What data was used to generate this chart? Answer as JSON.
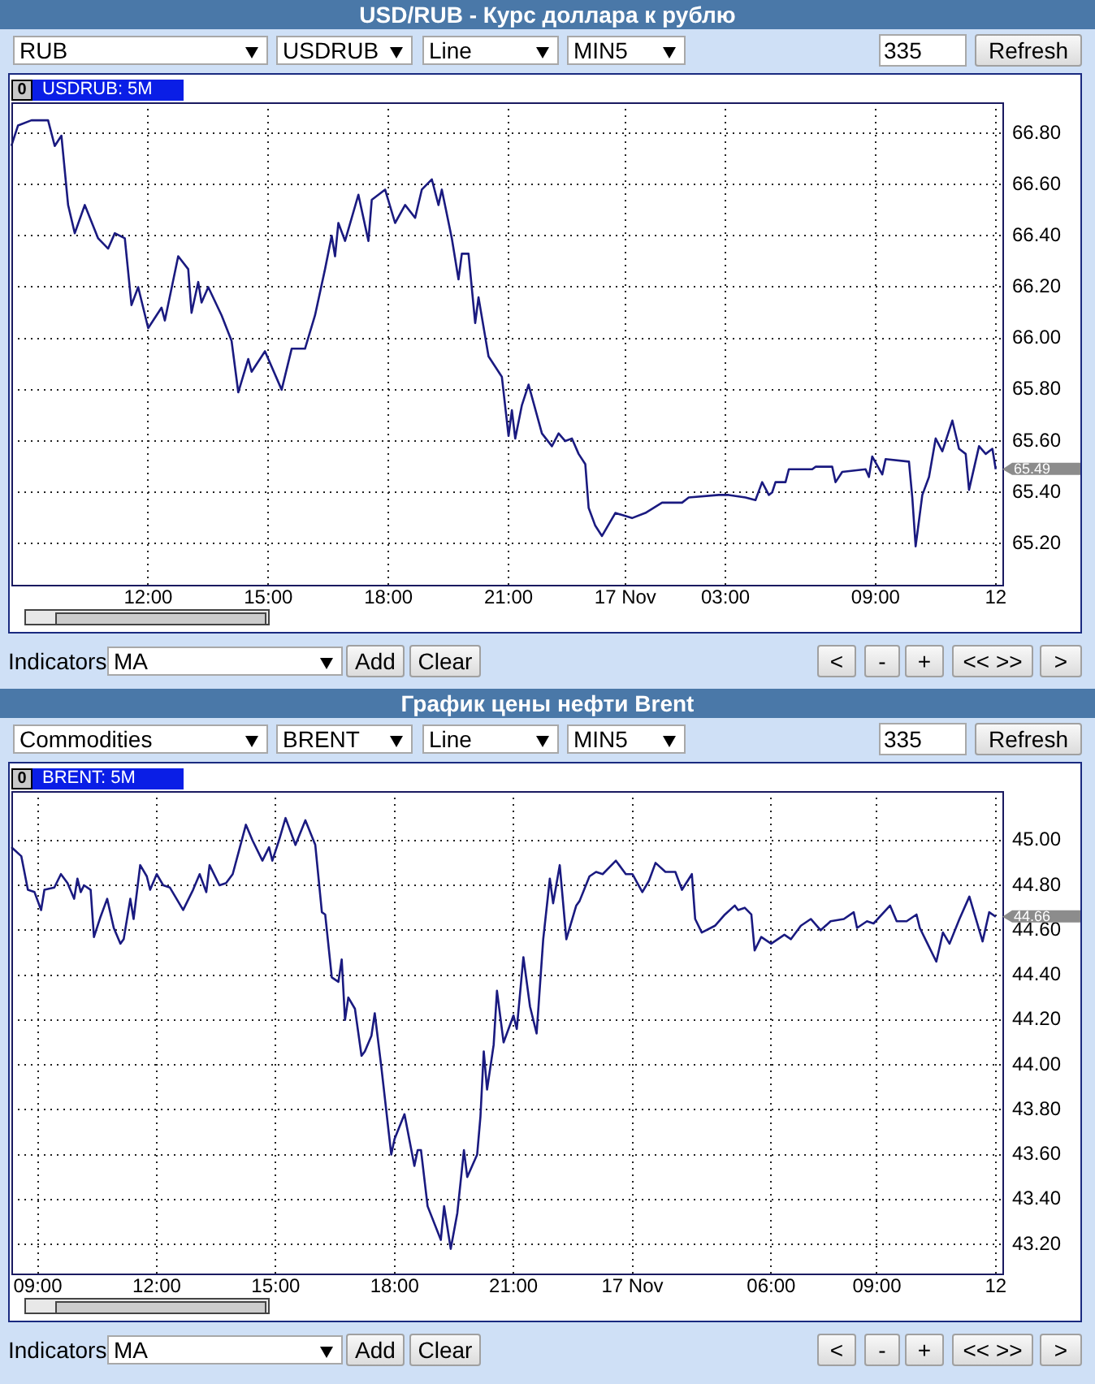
{
  "chart_data": [
    {
      "type": "line",
      "title": "USD/RUB - Курс доллара к рублю",
      "color": "#1a1a80",
      "marker": "none",
      "line_style": "solid",
      "grid": true,
      "categories": [
        null,
        null,
        null,
        null,
        null,
        null,
        null,
        null,
        null,
        null,
        null,
        null,
        null,
        null,
        null,
        null,
        null,
        null,
        null,
        null,
        null,
        null,
        null,
        null,
        null,
        null,
        null,
        null,
        null,
        null,
        null,
        null,
        null,
        null,
        null,
        null,
        null,
        null,
        null,
        null,
        null,
        "12:00",
        null,
        null,
        null,
        null,
        null,
        null,
        null,
        null,
        null,
        null,
        null,
        null,
        null,
        null,
        null,
        null,
        null,
        null,
        null,
        null,
        null,
        null,
        null,
        null,
        null,
        null,
        null,
        null,
        null,
        null,
        null,
        null,
        null,
        null,
        null,
        "15:00",
        null,
        null,
        null,
        null,
        null,
        null,
        null,
        null,
        null,
        null,
        null,
        null,
        null,
        null,
        null,
        null,
        null,
        null,
        null,
        null,
        null,
        null,
        null,
        null,
        null,
        null,
        null,
        null,
        null,
        null,
        null,
        null,
        null,
        null,
        null,
        "18:00",
        null,
        null,
        null,
        null,
        null,
        null,
        null,
        null,
        null,
        null,
        null,
        null,
        null,
        null,
        null,
        null,
        null,
        null,
        null,
        null,
        null,
        null,
        null,
        null,
        null,
        null,
        null,
        null,
        null,
        null,
        null,
        null,
        null,
        null,
        null,
        "21:00",
        null,
        null,
        null,
        null,
        null,
        null,
        null,
        null,
        null,
        null,
        null,
        null,
        null,
        null,
        null,
        null,
        null,
        null,
        null,
        null,
        null,
        null,
        null,
        null,
        null,
        null,
        null,
        null,
        null,
        null,
        null,
        null,
        null,
        null,
        "17 Nov",
        null,
        null,
        null,
        null,
        null,
        null,
        null,
        null,
        null,
        null,
        null,
        null,
        null,
        null,
        null,
        null,
        null,
        null,
        null,
        null,
        null,
        null,
        null,
        null,
        null,
        null,
        null,
        null,
        null,
        "03:00",
        null,
        null,
        null,
        null,
        null,
        null,
        null,
        null,
        null,
        null,
        null,
        null,
        null,
        null,
        null,
        null,
        null,
        null,
        null,
        null,
        null,
        null,
        null,
        null,
        null,
        null,
        null,
        null,
        null,
        null,
        null,
        null,
        null,
        null,
        null,
        null,
        null,
        null,
        null,
        null,
        null,
        null,
        null,
        null,
        "09:00",
        null,
        null,
        null,
        null,
        null,
        null,
        null,
        null,
        null,
        null,
        null,
        null,
        null,
        null,
        null,
        null,
        null,
        null,
        null,
        null,
        null,
        null,
        null,
        null,
        null,
        null,
        null,
        null,
        null,
        null,
        null,
        null,
        null,
        null,
        null,
        "12",
        null,
        null
      ],
      "values": [
        66.75,
        null,
        66.83,
        null,
        null,
        null,
        66.85,
        null,
        null,
        null,
        null,
        66.85,
        null,
        66.75,
        null,
        66.79,
        null,
        66.52,
        null,
        66.41,
        null,
        null,
        66.52,
        null,
        null,
        null,
        66.39,
        null,
        null,
        66.35,
        null,
        66.41,
        null,
        null,
        66.39,
        null,
        66.13,
        null,
        66.2,
        null,
        null,
        66.04,
        null,
        null,
        null,
        66.12,
        66.07,
        null,
        null,
        null,
        66.32,
        null,
        null,
        66.27,
        66.1,
        null,
        66.22,
        66.14,
        null,
        66.2,
        null,
        null,
        null,
        66.09,
        null,
        null,
        65.99,
        null,
        65.79,
        null,
        null,
        65.92,
        65.87,
        null,
        null,
        null,
        65.95,
        null,
        null,
        null,
        null,
        65.8,
        null,
        null,
        65.96,
        null,
        null,
        null,
        65.96,
        null,
        null,
        66.09,
        null,
        null,
        66.27,
        null,
        66.4,
        66.32,
        66.45,
        null,
        66.38,
        null,
        null,
        null,
        66.56,
        null,
        null,
        66.38,
        66.54,
        null,
        null,
        null,
        66.58,
        null,
        null,
        66.45,
        null,
        null,
        66.52,
        null,
        null,
        66.47,
        null,
        66.58,
        null,
        null,
        66.62,
        null,
        66.52,
        66.58,
        null,
        null,
        66.39,
        null,
        66.23,
        66.33,
        null,
        66.33,
        null,
        66.06,
        66.16,
        null,
        null,
        65.93,
        null,
        null,
        null,
        65.85,
        null,
        65.62,
        65.72,
        65.61,
        null,
        65.74,
        null,
        65.82,
        null,
        null,
        null,
        65.63,
        null,
        null,
        65.58,
        null,
        65.63,
        null,
        65.6,
        null,
        65.61,
        null,
        65.55,
        null,
        65.51,
        65.34,
        null,
        65.27,
        null,
        65.23,
        null,
        null,
        null,
        65.32,
        null,
        null,
        null,
        null,
        65.3,
        null,
        null,
        null,
        65.32,
        null,
        null,
        null,
        null,
        65.36,
        null,
        null,
        null,
        null,
        null,
        65.36,
        null,
        65.38,
        null,
        null,
        null,
        null,
        null,
        null,
        null,
        null,
        65.39,
        null,
        null,
        65.39,
        null,
        null,
        null,
        null,
        65.38,
        null,
        null,
        65.37,
        null,
        65.44,
        null,
        65.39,
        65.4,
        65.44,
        null,
        null,
        65.44,
        65.49,
        null,
        null,
        null,
        null,
        null,
        null,
        65.49,
        65.5,
        null,
        null,
        null,
        null,
        65.5,
        65.44,
        null,
        65.48,
        null,
        null,
        null,
        null,
        null,
        null,
        65.49,
        65.46,
        65.54,
        null,
        null,
        65.47,
        65.53,
        null,
        null,
        null,
        null,
        null,
        null,
        65.52,
        65.38,
        65.19,
        null,
        65.39,
        null,
        65.46,
        null,
        65.61,
        null,
        65.56,
        null,
        null,
        65.68,
        null,
        65.57,
        null,
        65.55,
        65.41,
        null,
        null,
        65.58,
        null,
        65.55,
        null,
        65.57,
        65.49,
        null,
        null
      ],
      "ylim": [
        65.04,
        66.92
      ],
      "yticks": [
        {
          "value": 65.2,
          "label": "65.20"
        },
        {
          "value": 65.4,
          "label": "65.40"
        },
        {
          "value": 65.6,
          "label": "65.60"
        },
        {
          "value": 65.8,
          "label": "65.80"
        },
        {
          "value": 66,
          "label": "66.00"
        },
        {
          "value": 66.2,
          "label": "66.20"
        },
        {
          "value": 66.4,
          "label": "66.40"
        },
        {
          "value": 66.6,
          "label": "66.60"
        },
        {
          "value": 66.8,
          "label": "66.80"
        }
      ],
      "annotations": [
        "0",
        "USDRUB: 5M",
        "65.49",
        "RUB",
        "USDRUB",
        "Line",
        "MIN5",
        "335",
        "Refresh",
        "Indicators",
        "MA",
        "Add",
        "Clear",
        "<",
        "-",
        "+",
        "<< >>",
        ">"
      ]
    },
    {
      "type": "line",
      "title": "График цены нефти Brent",
      "color": "#1a1a80",
      "marker": "none",
      "line_style": "solid",
      "grid": true,
      "categories": [
        null,
        null,
        null,
        null,
        null,
        null,
        null,
        null,
        "09:00",
        null,
        null,
        null,
        null,
        null,
        null,
        null,
        null,
        null,
        null,
        null,
        null,
        null,
        null,
        null,
        null,
        null,
        null,
        null,
        null,
        null,
        null,
        null,
        null,
        null,
        null,
        null,
        null,
        null,
        null,
        null,
        null,
        null,
        null,
        null,
        "12:00",
        null,
        null,
        null,
        null,
        null,
        null,
        null,
        null,
        null,
        null,
        null,
        null,
        null,
        null,
        null,
        null,
        null,
        null,
        null,
        null,
        null,
        null,
        null,
        null,
        null,
        null,
        null,
        null,
        null,
        null,
        null,
        null,
        null,
        null,
        null,
        "15:00",
        null,
        null,
        null,
        null,
        null,
        null,
        null,
        null,
        null,
        null,
        null,
        null,
        null,
        null,
        null,
        null,
        null,
        null,
        null,
        null,
        null,
        null,
        null,
        null,
        null,
        null,
        null,
        null,
        null,
        null,
        null,
        null,
        null,
        null,
        null,
        "18:00",
        null,
        null,
        null,
        null,
        null,
        null,
        null,
        null,
        null,
        null,
        null,
        null,
        null,
        null,
        null,
        null,
        null,
        null,
        null,
        null,
        null,
        null,
        null,
        null,
        null,
        null,
        null,
        null,
        null,
        null,
        null,
        null,
        null,
        null,
        null,
        "21:00",
        null,
        null,
        null,
        null,
        null,
        null,
        null,
        null,
        null,
        null,
        null,
        null,
        null,
        null,
        null,
        null,
        null,
        null,
        null,
        null,
        null,
        null,
        null,
        null,
        null,
        null,
        null,
        null,
        null,
        null,
        null,
        null,
        null,
        null,
        null,
        "17 Nov",
        null,
        null,
        null,
        null,
        null,
        null,
        null,
        null,
        null,
        null,
        null,
        null,
        null,
        null,
        null,
        null,
        null,
        null,
        null,
        null,
        null,
        null,
        null,
        null,
        null,
        null,
        null,
        null,
        null,
        null,
        null,
        null,
        null,
        null,
        null,
        null,
        null,
        null,
        null,
        null,
        null,
        "06:00",
        null,
        null,
        null,
        null,
        null,
        null,
        null,
        null,
        null,
        null,
        null,
        null,
        null,
        null,
        null,
        null,
        null,
        null,
        null,
        null,
        null,
        null,
        null,
        null,
        null,
        null,
        null,
        null,
        null,
        null,
        null,
        "09:00",
        null,
        null,
        null,
        null,
        null,
        null,
        null,
        null,
        null,
        null,
        null,
        null,
        null,
        null,
        null,
        null,
        null,
        null,
        null,
        null,
        null,
        null,
        null,
        null,
        null,
        null,
        null,
        null,
        null,
        null,
        null,
        null,
        null,
        null,
        null,
        "12",
        null,
        null
      ],
      "values": [
        44.97,
        null,
        null,
        44.93,
        null,
        44.78,
        null,
        44.77,
        null,
        44.69,
        44.78,
        null,
        null,
        44.79,
        null,
        44.85,
        null,
        44.81,
        null,
        44.74,
        44.83,
        44.77,
        44.8,
        null,
        44.78,
        44.57,
        null,
        44.66,
        null,
        44.74,
        null,
        44.61,
        null,
        44.54,
        44.56,
        null,
        44.74,
        44.65,
        null,
        44.89,
        null,
        44.84,
        44.78,
        null,
        44.85,
        null,
        44.8,
        null,
        44.79,
        null,
        null,
        null,
        44.69,
        null,
        null,
        44.78,
        null,
        44.85,
        null,
        44.77,
        44.89,
        null,
        null,
        44.8,
        null,
        44.81,
        null,
        44.85,
        null,
        44.96,
        null,
        45.07,
        null,
        45,
        null,
        null,
        44.91,
        null,
        44.97,
        44.91,
        null,
        45,
        null,
        45.1,
        null,
        null,
        44.98,
        null,
        null,
        45.09,
        null,
        null,
        44.98,
        null,
        44.68,
        44.67,
        null,
        44.39,
        null,
        44.37,
        44.47,
        44.2,
        44.3,
        null,
        44.25,
        null,
        44.04,
        44.06,
        null,
        44.13,
        44.23,
        null,
        43.99,
        null,
        null,
        43.6,
        43.67,
        null,
        null,
        43.78,
        null,
        null,
        43.55,
        43.62,
        43.62,
        null,
        43.37,
        null,
        null,
        null,
        43.22,
        43.37,
        null,
        43.18,
        null,
        43.34,
        null,
        43.62,
        43.5,
        null,
        null,
        43.6,
        43.77,
        44.06,
        43.89,
        null,
        44.09,
        44.33,
        null,
        44.1,
        null,
        null,
        44.22,
        44.16,
        null,
        44.48,
        null,
        44.26,
        null,
        44.14,
        null,
        44.56,
        null,
        44.83,
        44.72,
        null,
        44.89,
        null,
        44.56,
        null,
        null,
        44.71,
        44.73,
        null,
        null,
        44.84,
        null,
        44.86,
        null,
        44.85,
        null,
        null,
        null,
        44.91,
        null,
        null,
        44.85,
        null,
        44.85,
        null,
        null,
        44.77,
        null,
        44.82,
        null,
        44.9,
        null,
        null,
        44.86,
        null,
        null,
        44.86,
        null,
        44.78,
        null,
        null,
        44.85,
        44.65,
        null,
        44.59,
        null,
        null,
        null,
        44.62,
        null,
        null,
        44.67,
        null,
        null,
        44.71,
        44.69,
        null,
        44.7,
        null,
        44.67,
        44.51,
        null,
        44.57,
        null,
        null,
        44.54,
        null,
        null,
        null,
        44.58,
        null,
        44.56,
        null,
        null,
        44.62,
        null,
        null,
        44.65,
        null,
        null,
        44.6,
        null,
        null,
        44.64,
        null,
        null,
        null,
        44.65,
        null,
        null,
        44.68,
        44.61,
        null,
        null,
        44.64,
        null,
        44.63,
        null,
        null,
        null,
        null,
        44.71,
        null,
        44.64,
        null,
        null,
        44.64,
        null,
        null,
        44.67,
        44.61,
        null,
        44.55,
        null,
        null,
        44.46,
        null,
        44.59,
        null,
        44.54,
        null,
        null,
        44.65,
        null,
        null,
        44.75,
        null,
        null,
        null,
        44.55,
        null,
        44.68,
        null,
        44.66,
        null,
        null
      ],
      "ylim": [
        43.07,
        45.22
      ],
      "yticks": [
        {
          "value": 43.2,
          "label": "43.20"
        },
        {
          "value": 43.4,
          "label": "43.40"
        },
        {
          "value": 43.6,
          "label": "43.60"
        },
        {
          "value": 43.8,
          "label": "43.80"
        },
        {
          "value": 44,
          "label": "44.00"
        },
        {
          "value": 44.2,
          "label": "44.20"
        },
        {
          "value": 44.4,
          "label": "44.40"
        },
        {
          "value": 44.6,
          "label": "44.60"
        },
        {
          "value": 44.8,
          "label": "44.80"
        },
        {
          "value": 45,
          "label": "45.00"
        }
      ],
      "annotations": [
        "0",
        "BRENT: 5M",
        "44.66",
        "Commodities",
        "BRENT",
        "Line",
        "MIN5",
        "335",
        "Refresh",
        "Indicators",
        "MA",
        "Add",
        "Clear",
        "<",
        "-",
        "+",
        "<< >>",
        ">"
      ]
    }
  ]
}
